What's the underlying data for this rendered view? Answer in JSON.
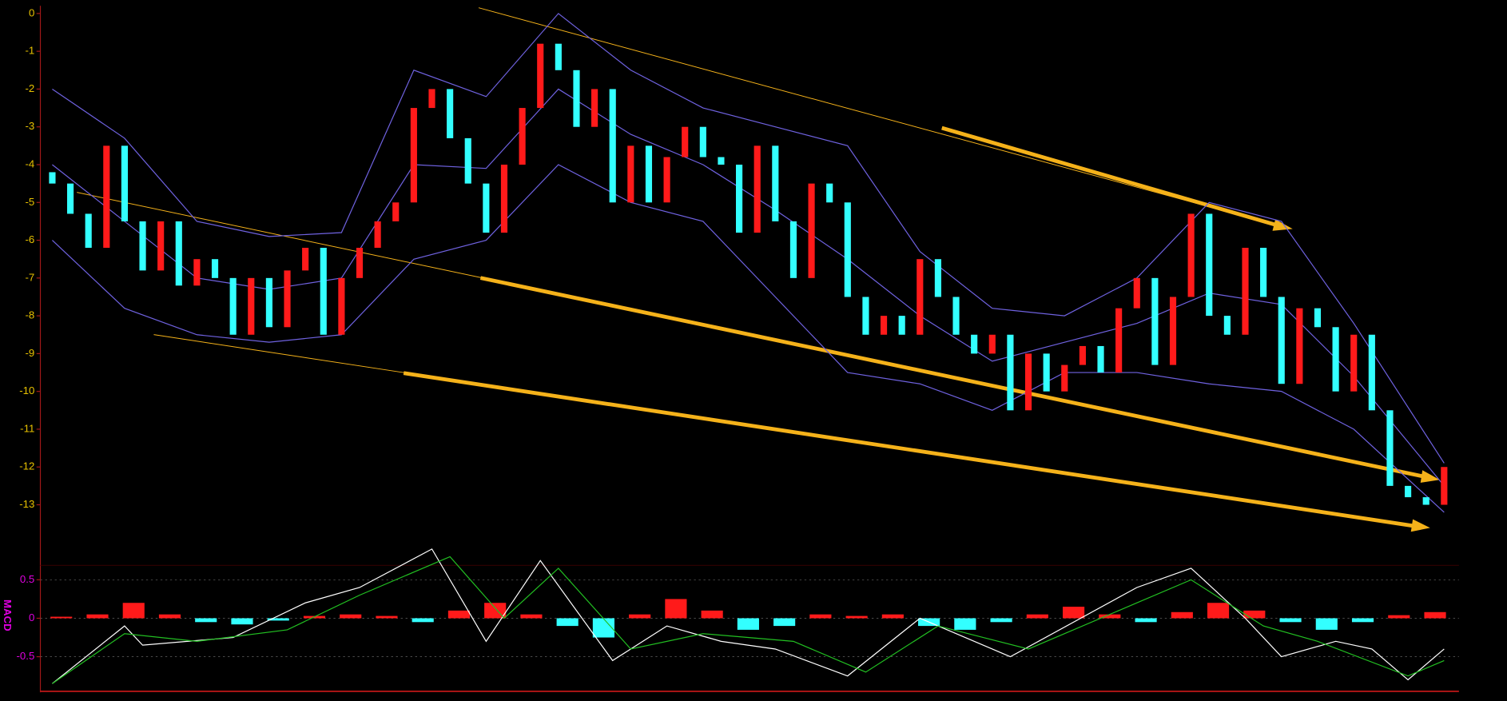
{
  "chart_data": [
    {
      "type": "candlestick",
      "open": [
        -4.2,
        -4.5,
        -5.3,
        -6.2,
        -3.5,
        -5.5,
        -6.8,
        -5.5,
        -7.2,
        -6.5,
        -7,
        -8.5,
        -7,
        -8.3,
        -6.8,
        -6.2,
        -8.5,
        -7,
        -6.2,
        -5.5,
        -5,
        -2.5,
        -2,
        -3.3,
        -4.5,
        -5.8,
        -4,
        -2.5,
        -0.8,
        -1.5,
        -3,
        -2,
        -5,
        -3.5,
        -5,
        -3.8,
        -3,
        -3.8,
        -4,
        -5.8,
        -3.5,
        -5.5,
        -7,
        -4.5,
        -5,
        -7.5,
        -8.5,
        -8,
        -8.5,
        -6.5,
        -7.5,
        -8.5,
        -9,
        -8.5,
        -10.5,
        -9,
        -10,
        -9.3,
        -8.8,
        -9.5,
        -7.8,
        -7,
        -9.3,
        -7.5,
        -5.3,
        -8,
        -8.5,
        -6.2,
        -7.5,
        -9.8,
        -7.8,
        -8.3,
        -10,
        -8.5,
        -10.5,
        -12.5,
        -12.8,
        -13
      ],
      "close": [
        -4.5,
        -5.3,
        -6.2,
        -3.5,
        -5.5,
        -6.8,
        -5.5,
        -7.2,
        -6.5,
        -7,
        -8.5,
        -7,
        -8.3,
        -6.8,
        -6.2,
        -8.5,
        -7,
        -6.2,
        -5.5,
        -5,
        -2.5,
        -2,
        -3.3,
        -4.5,
        -5.8,
        -4,
        -2.5,
        -0.8,
        -1.5,
        -3,
        -2,
        -5,
        -3.5,
        -5,
        -3.8,
        -3,
        -3.8,
        -4,
        -5.8,
        -3.5,
        -5.5,
        -7,
        -4.5,
        -5,
        -7.5,
        -8.5,
        -8,
        -8.5,
        -6.5,
        -7.5,
        -8.5,
        -9,
        -8.5,
        -10.5,
        -9,
        -10,
        -9.3,
        -8.8,
        -9.5,
        -7.8,
        -7,
        -9.3,
        -7.5,
        -5.3,
        -8,
        -8.5,
        -6.2,
        -7.5,
        -9.8,
        -7.8,
        -8.3,
        -10,
        -8.5,
        -10.5,
        -12.5,
        -12.8,
        -13,
        -12
      ],
      "up_color": "#ff1a1a",
      "down_color": "#33ffff",
      "ylim": [
        -14.4,
        0.2
      ],
      "yticks": [
        0,
        -1,
        -2,
        -3,
        -4,
        -5,
        -6,
        -7,
        -8,
        -9,
        -10,
        -11,
        -12,
        -13
      ],
      "tick_color": "#e8c200",
      "bands": [
        {
          "color": "#6f62e0",
          "x": [
            0,
            4,
            8,
            12,
            16,
            20,
            24,
            28,
            32,
            36,
            40,
            44,
            48,
            52,
            56,
            60,
            64,
            68,
            72,
            77
          ],
          "values": [
            -2,
            -3.3,
            -5.5,
            -5.9,
            -5.8,
            -1.5,
            -2.2,
            0,
            -1.5,
            -2.5,
            -3,
            -3.5,
            -6.3,
            -7.8,
            -8,
            -7,
            -5,
            -5.5,
            -8.2,
            -11.9
          ]
        },
        {
          "color": "#6f62e0",
          "x": [
            0,
            4,
            8,
            12,
            16,
            20,
            24,
            28,
            32,
            36,
            40,
            44,
            48,
            52,
            56,
            60,
            64,
            68,
            72,
            77
          ],
          "values": [
            -4,
            -5.5,
            -7,
            -7.3,
            -7,
            -4,
            -4.1,
            -2,
            -3.2,
            -4,
            -5.2,
            -6.5,
            -8,
            -9.2,
            -8.7,
            -8.2,
            -7.4,
            -7.7,
            -9.6,
            -12.5
          ]
        },
        {
          "color": "#6f62e0",
          "x": [
            0,
            4,
            8,
            12,
            16,
            20,
            24,
            28,
            32,
            36,
            40,
            44,
            48,
            52,
            56,
            60,
            64,
            68,
            72,
            77
          ],
          "values": [
            -6,
            -7.8,
            -8.5,
            -8.7,
            -8.5,
            -6.5,
            -6,
            -4,
            -5,
            -5.5,
            -7.5,
            -9.5,
            -9.8,
            -10.5,
            -9.5,
            -9.5,
            -9.8,
            -10,
            -11,
            -13.2
          ]
        }
      ]
    },
    {
      "type": "macd",
      "title": "MACD",
      "ylim": [
        -0.9,
        0.85
      ],
      "yticks": [
        0.5,
        0,
        -0.5
      ],
      "tick_color": "#e000e0",
      "grid": true,
      "histogram": [
        0.02,
        0.05,
        0.2,
        0.05,
        -0.05,
        -0.08,
        -0.03,
        0.03,
        0.05,
        0.03,
        -0.05,
        0.1,
        0.2,
        0.05,
        -0.1,
        -0.25,
        0.05,
        0.25,
        0.1,
        -0.15,
        -0.1,
        0.05,
        0.03,
        0.05,
        -0.1,
        -0.15,
        -0.05,
        0.05,
        0.15,
        0.05,
        -0.05,
        0.08,
        0.2,
        0.1,
        -0.05,
        -0.15,
        -0.05,
        0.04,
        0.08
      ],
      "up_color": "#ff1a1a",
      "down_color": "#33ffff",
      "series": [
        {
          "color": "#ffffff",
          "x": [
            0,
            4,
            5,
            10,
            14,
            17,
            21,
            24,
            27,
            31,
            34,
            37,
            40,
            44,
            48,
            53,
            60,
            63,
            66,
            68,
            71,
            73,
            75,
            77
          ],
          "values": [
            -0.85,
            -0.1,
            -0.35,
            -0.25,
            0.2,
            0.4,
            0.9,
            -0.3,
            0.75,
            -0.55,
            -0.1,
            -0.3,
            -0.4,
            -0.75,
            0,
            -0.5,
            0.4,
            0.65,
            0,
            -0.5,
            -0.3,
            -0.4,
            -0.8,
            -0.4
          ]
        },
        {
          "color": "#22c022",
          "x": [
            0,
            4,
            8,
            13,
            17,
            22,
            25,
            28,
            32,
            36,
            41,
            45,
            49,
            54,
            60,
            63,
            67,
            70,
            75,
            77
          ],
          "values": [
            -0.85,
            -0.2,
            -0.3,
            -0.15,
            0.3,
            0.8,
            0,
            0.65,
            -0.4,
            -0.2,
            -0.3,
            -0.7,
            -0.1,
            -0.4,
            0.2,
            0.5,
            -0.1,
            -0.3,
            -0.75,
            -0.55
          ]
        }
      ]
    }
  ]
}
